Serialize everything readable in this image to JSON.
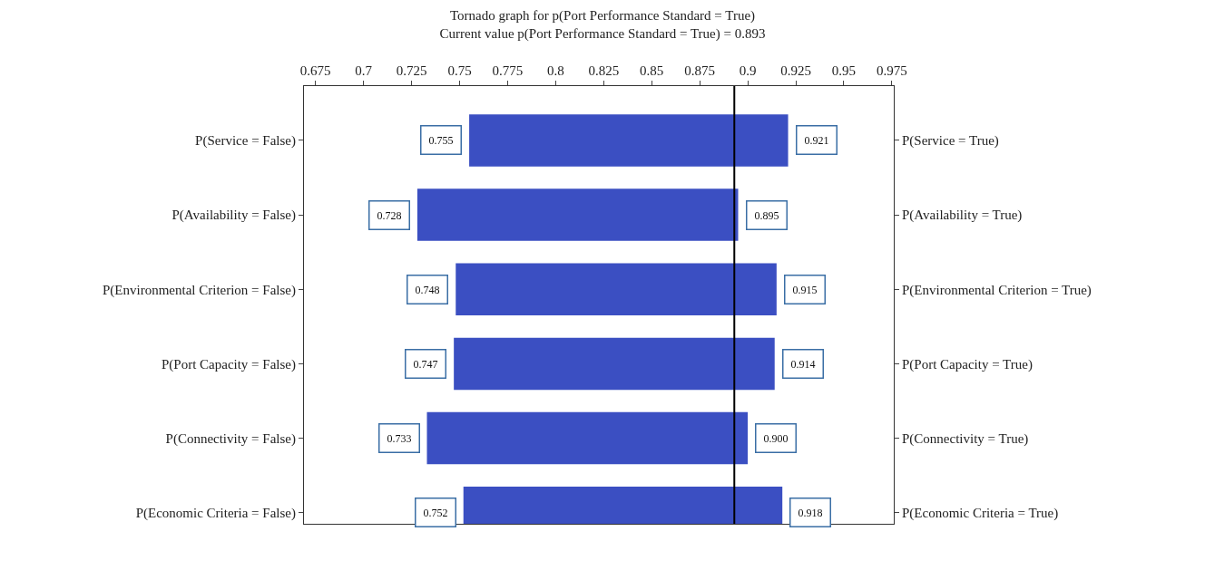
{
  "chart_data": {
    "type": "bar",
    "orientation": "horizontal",
    "title": "Tornado graph for p(Port Performance Standard = True)",
    "subtitle": "Current value p(Port Performance Standard = True) = 0.893",
    "categories": [
      "P(Service = False)",
      "P(Availability = False)",
      "P(Environmental Criterion = False)",
      "P(Port Capacity = False)",
      "P(Connectivity = False)",
      "P(Economic Criteria = False)"
    ],
    "y2_categories": [
      "P(Service = True)",
      "P(Availability = True)",
      "P(Environmental Criterion = True)",
      "P(Port Capacity = True)",
      "P(Connectivity = True)",
      "P(Economic Criteria = True)"
    ],
    "base": [
      0.755,
      0.728,
      0.748,
      0.747,
      0.733,
      0.752
    ],
    "values": [
      0.166,
      0.167,
      0.167,
      0.167,
      0.167,
      0.166
    ],
    "color": "#3b4fc2",
    "xlim": [
      0.669,
      0.976
    ],
    "xticks": [
      0.675,
      0.7,
      0.725,
      0.75,
      0.775,
      0.8,
      0.825,
      0.85,
      0.875,
      0.9,
      0.925,
      0.95,
      0.975
    ],
    "ref_lines": [
      {
        "axis": "x",
        "value": 0.893,
        "color": "#000000"
      }
    ],
    "annotations": [
      {
        "text": "0.755",
        "x": 0.755,
        "y": "P(Service = False)"
      },
      {
        "text": "0.921",
        "x": 0.921,
        "y": "P(Service = False)"
      },
      {
        "text": "0.728",
        "x": 0.728,
        "y": "P(Availability = False)"
      },
      {
        "text": "0.895",
        "x": 0.895,
        "y": "P(Availability = False)"
      },
      {
        "text": "0.748",
        "x": 0.748,
        "y": "P(Environmental Criterion = False)"
      },
      {
        "text": "0.915",
        "x": 0.915,
        "y": "P(Environmental Criterion = False)"
      },
      {
        "text": "0.747",
        "x": 0.747,
        "y": "P(Port Capacity = False)"
      },
      {
        "text": "0.914",
        "x": 0.914,
        "y": "P(Port Capacity = False)"
      },
      {
        "text": "0.733",
        "x": 0.733,
        "y": "P(Connectivity = False)"
      },
      {
        "text": "0.900",
        "x": 0.9,
        "y": "P(Connectivity = False)"
      },
      {
        "text": "0.752",
        "x": 0.752,
        "y": "P(Economic Criteria = False)"
      },
      {
        "text": "0.918",
        "x": 0.918,
        "y": "P(Economic Criteria = False)"
      }
    ],
    "grid": false,
    "legend": false
  }
}
